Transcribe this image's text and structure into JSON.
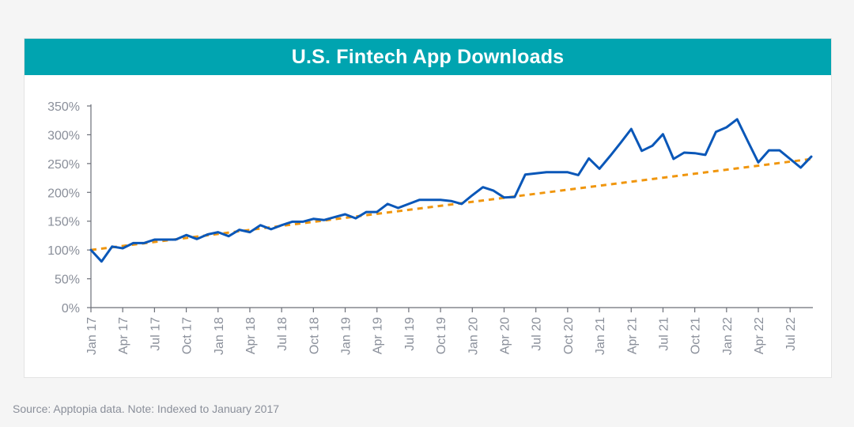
{
  "title": "U.S. Fintech App Downloads",
  "source": "Source: Apptopia data. Note: Indexed to January 2017",
  "colors": {
    "title_bar": "#00a4b0",
    "series_line": "#0a57b8",
    "trend_line": "#f0960e",
    "axis": "#6c6f78",
    "tick_text": "#8a8f9a"
  },
  "chart_data": {
    "type": "line",
    "title": "U.S. Fintech App Downloads",
    "xlabel": "",
    "ylabel": "",
    "ylim": [
      0,
      350
    ],
    "y_ticks": [
      0,
      50,
      100,
      150,
      200,
      250,
      300,
      350
    ],
    "y_tick_labels": [
      "0%",
      "50%",
      "100%",
      "150%",
      "200%",
      "250%",
      "300%",
      "350%"
    ],
    "x_tick_labels": [
      "Jan 17",
      "Apr 17",
      "Jul 17",
      "Oct 17",
      "Jan 18",
      "Apr 18",
      "Jul 18",
      "Oct 18",
      "Jan 19",
      "Apr 19",
      "Jul 19",
      "Oct 19",
      "Jan 20",
      "Apr 20",
      "Jul 20",
      "Oct 20",
      "Jan 21",
      "Apr 21",
      "Jul 21",
      "Oct 21",
      "Jan 22",
      "Apr 22",
      "Jul 22"
    ],
    "grid": false,
    "legend": "none",
    "series": [
      {
        "style": "solid",
        "values": [
          100,
          80,
          106,
          103,
          112,
          112,
          118,
          118,
          118,
          126,
          119,
          127,
          131,
          124,
          135,
          131,
          143,
          136,
          143,
          149,
          149,
          154,
          152,
          157,
          162,
          155,
          166,
          166,
          180,
          173,
          180,
          187,
          187,
          187,
          185,
          180,
          195,
          209,
          203,
          191,
          192,
          231,
          233,
          235,
          235,
          235,
          230,
          259,
          241,
          263,
          286,
          310,
          272,
          281,
          301,
          258,
          269,
          268,
          265,
          305,
          313,
          327,
          289,
          252,
          273,
          273,
          258,
          243,
          262
        ]
      },
      {
        "style": "dashed",
        "values": [
          100,
          258
        ]
      }
    ]
  }
}
